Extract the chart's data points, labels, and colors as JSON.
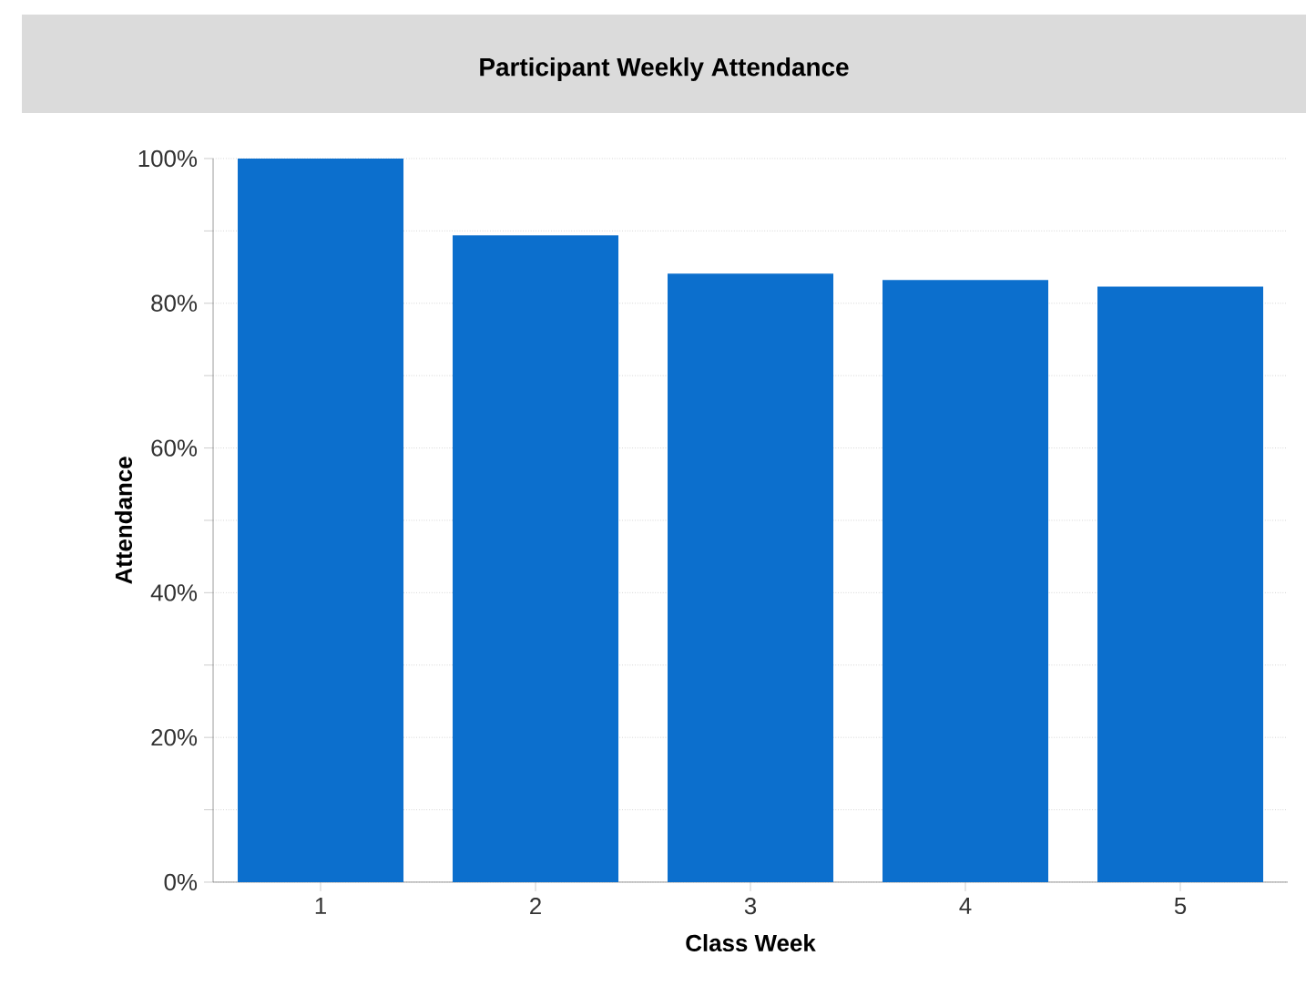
{
  "chart_data": {
    "type": "bar",
    "title": "Participant Weekly Attendance",
    "xlabel": "Class Week",
    "ylabel": "Attendance",
    "categories": [
      "1",
      "2",
      "3",
      "4",
      "5"
    ],
    "values": [
      100,
      89.4,
      84.1,
      83.2,
      82.3
    ],
    "color": "#0c6fcd",
    "ylim": [
      0,
      100
    ],
    "yticks": [
      {
        "value": 0,
        "label": "0%"
      },
      {
        "value": 10,
        "label": null
      },
      {
        "value": 20,
        "label": "20%"
      },
      {
        "value": 30,
        "label": null
      },
      {
        "value": 40,
        "label": "40%"
      },
      {
        "value": 50,
        "label": null
      },
      {
        "value": 60,
        "label": "60%"
      },
      {
        "value": 70,
        "label": null
      },
      {
        "value": 80,
        "label": "80%"
      },
      {
        "value": 90,
        "label": null
      },
      {
        "value": 100,
        "label": "100%"
      }
    ],
    "grid": "y"
  }
}
